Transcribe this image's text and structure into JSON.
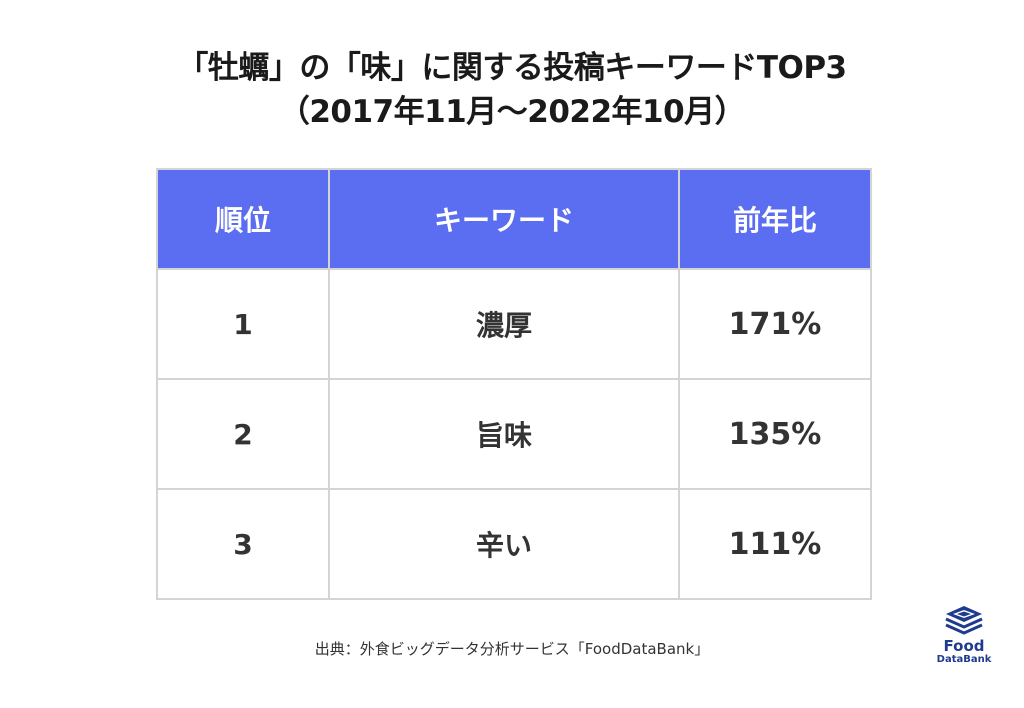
{
  "title": {
    "line1": "「牡蠣」の「味」に関する投稿キーワードTOP3",
    "line2": "（2017年11月〜2022年10月）"
  },
  "table": {
    "headers": [
      "順位",
      "キーワード",
      "前年比"
    ],
    "rows": [
      {
        "rank": "1",
        "keyword": "濃厚",
        "yoy": "171%"
      },
      {
        "rank": "2",
        "keyword": "旨味",
        "yoy": "135%"
      },
      {
        "rank": "3",
        "keyword": "辛い",
        "yoy": "111%"
      }
    ]
  },
  "source": "出典：外食ビッグデータ分析サービス「FoodDataBank」",
  "logo": {
    "line1": "Food",
    "line2": "DataBank"
  },
  "colors": {
    "header_bg": "#5b6df0",
    "border": "#d4d4d4",
    "logo": "#1f3b8f"
  }
}
